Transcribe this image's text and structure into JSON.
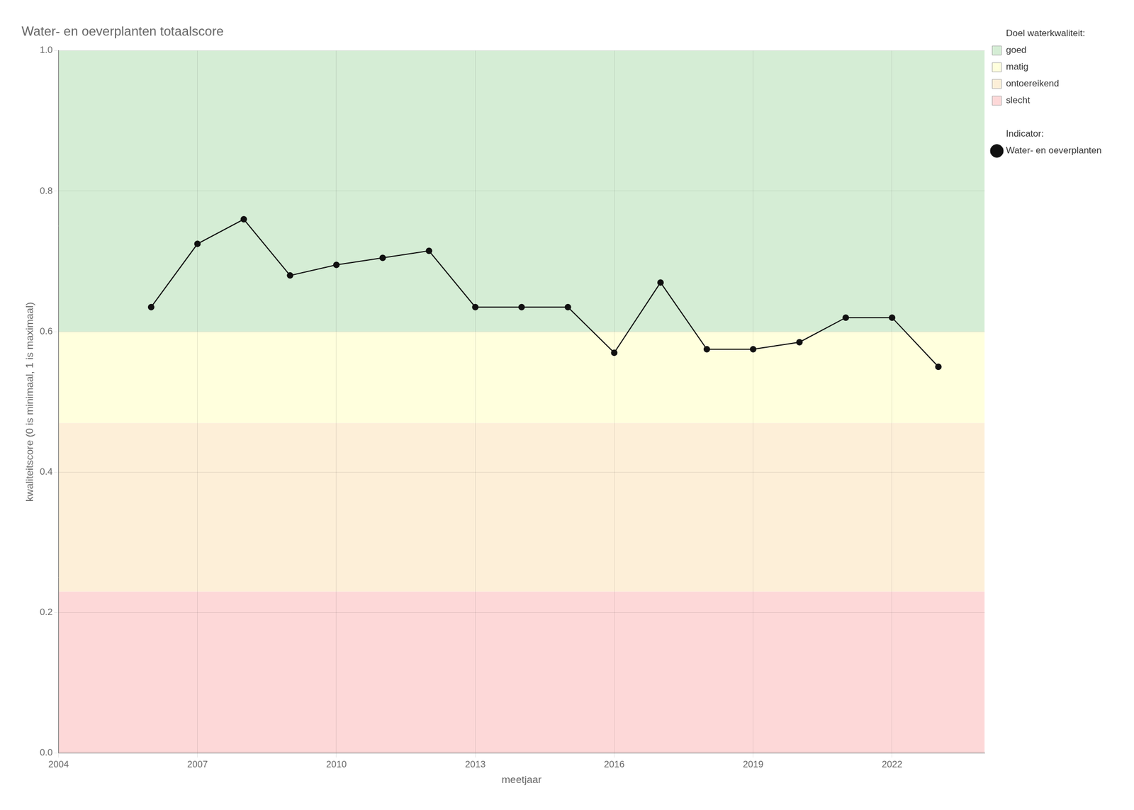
{
  "chart_data": {
    "type": "line",
    "title": "Water- en oeverplanten totaalscore",
    "xlabel": "meetjaar",
    "ylabel": "kwaliteitscore (0 is minimaal, 1 is maximaal)",
    "x": [
      2006,
      2007,
      2008,
      2009,
      2010,
      2011,
      2012,
      2013,
      2014,
      2015,
      2016,
      2017,
      2018,
      2019,
      2020,
      2021,
      2022,
      2023
    ],
    "series": [
      {
        "name": "Water- en oeverplanten",
        "color": "#111111",
        "marker": "circle",
        "values": [
          0.635,
          0.725,
          0.76,
          0.68,
          0.695,
          0.705,
          0.715,
          0.635,
          0.635,
          0.635,
          0.57,
          0.67,
          0.575,
          0.575,
          0.585,
          0.62,
          0.62,
          0.55
        ]
      }
    ],
    "xlim": [
      2004,
      2024
    ],
    "ylim": [
      0.0,
      1.0
    ],
    "xticks": [
      2004,
      2007,
      2010,
      2013,
      2016,
      2019,
      2022
    ],
    "yticks": [
      {
        "value": 0.0,
        "label": "0.0"
      },
      0.2,
      0.4,
      0.6,
      0.8,
      {
        "value": 1.0,
        "label": "1.0"
      }
    ],
    "grid": true,
    "legend": "right",
    "zones_title": "Doel waterkwaliteit:",
    "series_title": "Indicator:",
    "zones": [
      {
        "name": "goed",
        "color": "#d5edd5",
        "ymin": 0.6,
        "ymax": 1.0
      },
      {
        "name": "matig",
        "color": "#ffffdd",
        "ymin": 0.47,
        "ymax": 0.6
      },
      {
        "name": "ontoereikend",
        "color": "#fdefd8",
        "ymin": 0.23,
        "ymax": 0.47
      },
      {
        "name": "slecht",
        "color": "#fdd8d8",
        "ymin": 0.0,
        "ymax": 0.23
      }
    ]
  }
}
